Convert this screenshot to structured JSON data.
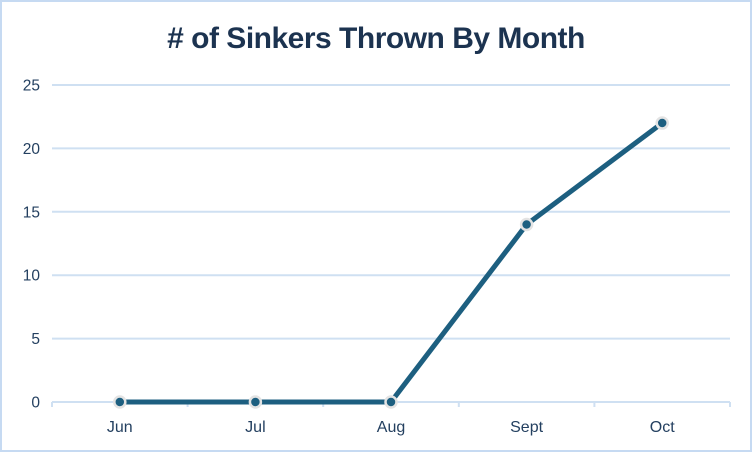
{
  "chart_data": {
    "type": "line",
    "title": "# of Sinkers Thrown By Month",
    "categories": [
      "Jun",
      "Jul",
      "Aug",
      "Sept",
      "Oct"
    ],
    "values": [
      0,
      0,
      0,
      14,
      22
    ],
    "xlabel": "",
    "ylabel": "",
    "ylim": [
      0,
      25
    ],
    "yticks": [
      0,
      5,
      10,
      15,
      20,
      25
    ],
    "grid": "horizontal",
    "legend_position": "none",
    "colors": {
      "line": "#1d5f80",
      "marker": "#1d5f80",
      "marker_ring": "#e3e3e3",
      "grid": "#cfe0f2",
      "axis_labels": "#244060",
      "title": "#1c3350",
      "card_border": "#c6daf2",
      "background": "#ffffff"
    }
  }
}
